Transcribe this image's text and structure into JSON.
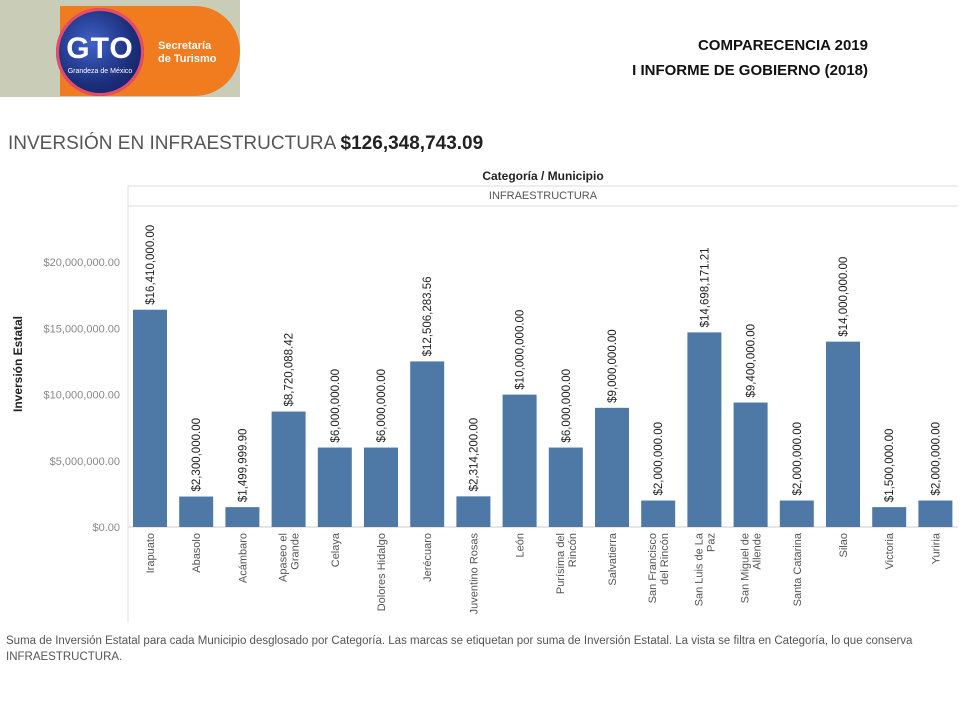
{
  "logo": {
    "mark": "GTO",
    "tagline": "Grandeza de México",
    "secretaria_line1": "Secretaría",
    "secretaria_line2": "de Turismo"
  },
  "header": {
    "line1": "COMPARECENCIA 2019",
    "line2": "I INFORME DE GOBIERNO (2018)"
  },
  "title": {
    "label": "INVERSIÓN EN INFRAESTRUCTURA",
    "amount": "$126,348,743.09"
  },
  "footnote": "Suma de Inversión Estatal para cada Municipio desglosado por Categoría.  Las marcas se etiquetan por suma de Inversión Estatal. La vista se filtra en Categoría, lo que conserva INFRAESTRUCTURA.",
  "colors": {
    "bar": "#4e79a7"
  },
  "chart_data": {
    "type": "bar",
    "column_header": "Categoría / Municipio",
    "category_header": "INFRAESTRUCTURA",
    "ylabel": "Inversión Estatal",
    "ylim": [
      0,
      25000000
    ],
    "yticks": [
      0,
      5000000,
      10000000,
      15000000,
      20000000
    ],
    "ytick_labels": [
      "$0.00",
      "$5,000,000.00",
      "$10,000,000.00",
      "$15,000,000.00",
      "$20,000,000.00"
    ],
    "grid": false,
    "categories": [
      [
        "Irapuato"
      ],
      [
        "Abasolo"
      ],
      [
        "Acámbaro"
      ],
      [
        "Apaseo el",
        "Grande"
      ],
      [
        "Celaya"
      ],
      [
        "Dolores Hidalgo"
      ],
      [
        "Jerécuaro"
      ],
      [
        "Juventino Rosas"
      ],
      [
        "León"
      ],
      [
        "Purísima del",
        "Rincón"
      ],
      [
        "Salvatierra"
      ],
      [
        "San Francisco",
        "del Rincón"
      ],
      [
        "San Luis de La",
        "Paz"
      ],
      [
        "San Miguel de",
        "Allende"
      ],
      [
        "Santa Catarina"
      ],
      [
        "Silao"
      ],
      [
        "Victoria"
      ],
      [
        "Yuriria"
      ]
    ],
    "values": [
      16410000,
      2300000,
      1499999.9,
      8720088.42,
      6000000,
      6000000,
      12506283.56,
      2314200,
      10000000,
      6000000,
      9000000,
      2000000,
      14698171.21,
      9400000,
      2000000,
      14000000,
      1500000,
      2000000
    ],
    "value_labels": [
      "$16,410,000.00",
      "$2,300,000.00",
      "$1,499,999.90",
      "$8,720,088.42",
      "$6,000,000.00",
      "$6,000,000.00",
      "$12,506,283.56",
      "$2,314,200.00",
      "$10,000,000.00",
      "$6,000,000.00",
      "$9,000,000.00",
      "$2,000,000.00",
      "$14,698,171.21",
      "$9,400,000.00",
      "$2,000,000.00",
      "$14,000,000.00",
      "$1,500,000.00",
      "$2,000,000.00"
    ]
  }
}
